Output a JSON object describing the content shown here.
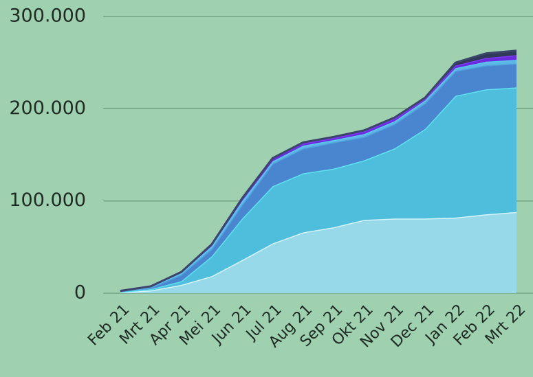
{
  "chart_data": {
    "type": "stacked_area",
    "categories": [
      "Feb 21",
      "Mrt 21",
      "Apr 21",
      "Mei 21",
      "Jun 21",
      "Jul 21",
      "Aug 21",
      "Sep 21",
      "Okt 21",
      "Nov 21",
      "Dec 21",
      "Jan 22",
      "Feb 22",
      "Mrt 22"
    ],
    "series": [
      {
        "color": "#97d9e8",
        "line_color": "#d6f4f8",
        "values": [
          1000,
          3000,
          9000,
          18500,
          36000,
          54000,
          66000,
          71500,
          79500,
          81000,
          81000,
          82000,
          85500,
          88000
        ]
      },
      {
        "color": "#4fbedd",
        "line_color": "#5fe2ef",
        "values": [
          500,
          1500,
          4000,
          21500,
          45000,
          62000,
          64000,
          63500,
          64500,
          76000,
          97000,
          132000,
          135500,
          135000
        ]
      },
      {
        "color": "#4a86cf",
        "line_color": "#4f9fdc",
        "values": [
          500,
          1500,
          7000,
          8000,
          15000,
          24500,
          27000,
          28500,
          25500,
          26500,
          28000,
          27000,
          26000,
          26000
        ]
      },
      {
        "color": "#5cb6e6",
        "line_color": "#5fc6ee",
        "values": [
          500,
          1000,
          2000,
          3000,
          4000,
          2500,
          3000,
          2500,
          3000,
          3000,
          3000,
          3000,
          4000,
          4000
        ]
      },
      {
        "color": "#6a2be0",
        "line_color": "#7b3cf2",
        "values": [
          0,
          500,
          1000,
          2000,
          3000,
          3500,
          2500,
          2500,
          3000,
          3000,
          2000,
          3000,
          4000,
          5000
        ]
      },
      {
        "color": "#2f3a5a",
        "line_color": "#3a4568",
        "values": [
          0,
          0,
          0,
          0,
          0,
          0,
          1000,
          1000,
          1000,
          1000,
          1000,
          3000,
          5000,
          5000
        ]
      }
    ],
    "ylim": [
      0,
      300000
    ],
    "yticks": [
      0,
      {
        "value": 100000,
        "label": "100.000"
      },
      {
        "value": 200000,
        "label": "200.000"
      },
      {
        "value": 300000,
        "label": "300.000"
      }
    ],
    "grid": true
  }
}
